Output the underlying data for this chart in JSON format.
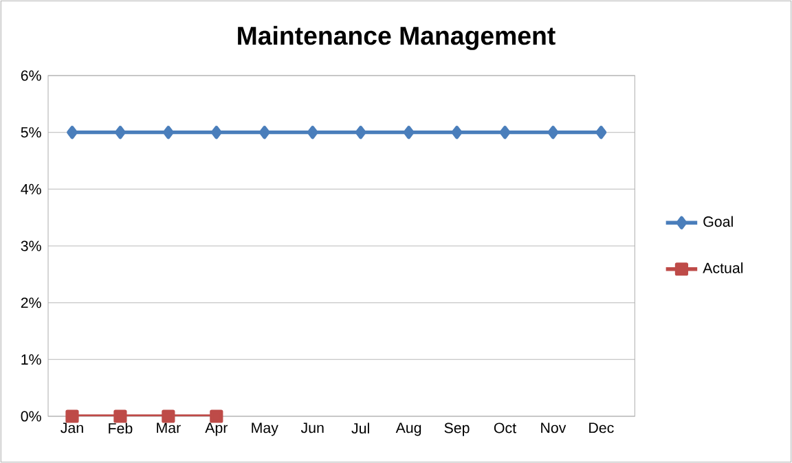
{
  "chart_data": {
    "type": "line",
    "title": "Maintenance Management",
    "categories": [
      "Jan",
      "Feb",
      "Mar",
      "Apr",
      "May",
      "Jun",
      "Jul",
      "Aug",
      "Sep",
      "Oct",
      "Nov",
      "Dec"
    ],
    "series": [
      {
        "name": "Goal",
        "color": "#4a7ebb",
        "marker": "diamond",
        "values": [
          5,
          5,
          5,
          5,
          5,
          5,
          5,
          5,
          5,
          5,
          5,
          5
        ]
      },
      {
        "name": "Actual",
        "color": "#be4b48",
        "marker": "square",
        "values": [
          0,
          0,
          0,
          0,
          null,
          null,
          null,
          null,
          null,
          null,
          null,
          null
        ]
      }
    ],
    "ylim": [
      0,
      6
    ],
    "yticks": [
      {
        "value": 0,
        "label": "0%"
      },
      {
        "value": 1,
        "label": "1%"
      },
      {
        "value": 2,
        "label": "2%"
      },
      {
        "value": 3,
        "label": "3%"
      },
      {
        "value": 4,
        "label": "4%"
      },
      {
        "value": 5,
        "label": "5%"
      },
      {
        "value": 6,
        "label": "6%"
      }
    ],
    "grid": "y",
    "legend": "right",
    "line_style": "solid"
  }
}
